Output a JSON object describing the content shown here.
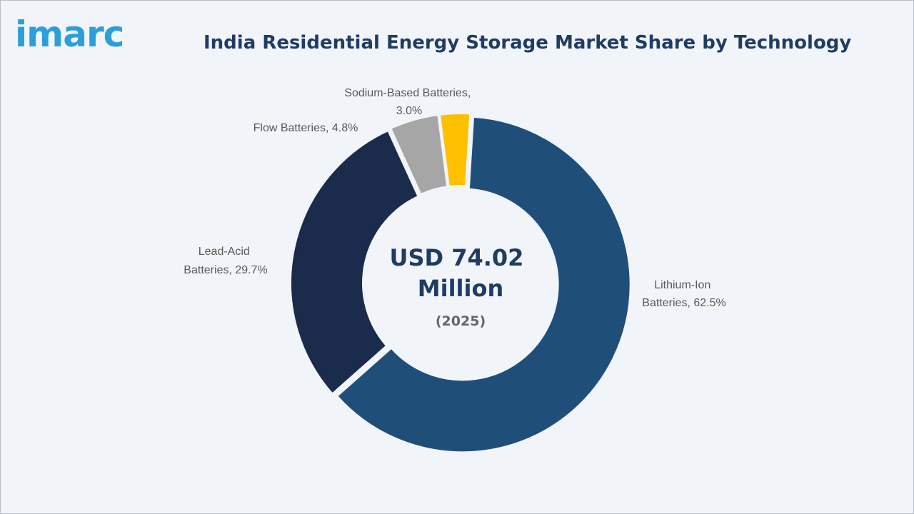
{
  "brand": {
    "logo_text": "imarc"
  },
  "chart_data": {
    "type": "pie",
    "variant": "donut",
    "title": "India Residential Energy Storage Market Share by Technology",
    "unit": "%",
    "center_value": "USD 74.02 Million",
    "center_year": "(2025)",
    "legend": "none",
    "slices": [
      {
        "name": "Lithium-Ion Batteries",
        "value": 62.5,
        "label": "Lithium-Ion Batteries, 62.5%",
        "color": "#1f4e79"
      },
      {
        "name": "Lead-Acid Batteries",
        "value": 29.7,
        "label": "Lead-Acid Batteries, 29.7%",
        "color": "#1a2b4c"
      },
      {
        "name": "Flow Batteries",
        "value": 4.8,
        "label": "Flow Batteries, 4.8%",
        "color": "#a6a6a6"
      },
      {
        "name": "Sodium-Based Batteries",
        "value": 3.0,
        "label": "Sodium-Based Batteries, 3.0%",
        "color": "#ffc000"
      }
    ]
  }
}
